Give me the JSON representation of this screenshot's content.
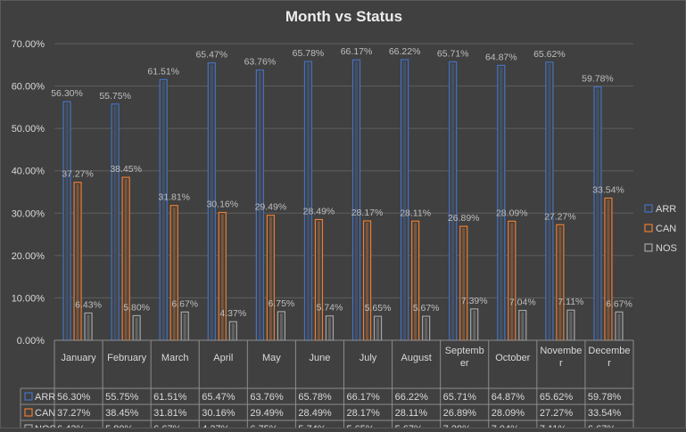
{
  "chart_data": {
    "type": "bar",
    "title": "Month vs Status",
    "xlabel": "",
    "ylabel": "",
    "ylim": [
      0,
      70
    ],
    "y_ticks": [
      "0.00%",
      "10.00%",
      "20.00%",
      "30.00%",
      "40.00%",
      "50.00%",
      "60.00%",
      "70.00%"
    ],
    "grid": true,
    "legend_position": "right",
    "categories": [
      "January",
      "February",
      "March",
      "April",
      "May",
      "June",
      "July",
      "August",
      "September",
      "October",
      "November",
      "December"
    ],
    "category_labels": [
      [
        "January"
      ],
      [
        "February"
      ],
      [
        "March"
      ],
      [
        "April"
      ],
      [
        "May"
      ],
      [
        "June"
      ],
      [
        "July"
      ],
      [
        "August"
      ],
      [
        "Septemb",
        "er"
      ],
      [
        "October"
      ],
      [
        "Novembe",
        "r"
      ],
      [
        "Decembe",
        "r"
      ]
    ],
    "series": [
      {
        "name": "ARR",
        "color": "#4472c4",
        "values": [
          56.3,
          55.75,
          61.51,
          65.47,
          63.76,
          65.78,
          66.17,
          66.22,
          65.71,
          64.87,
          65.62,
          59.78
        ],
        "labels": [
          "56.30%",
          "55.75%",
          "61.51%",
          "65.47%",
          "63.76%",
          "65.78%",
          "66.17%",
          "66.22%",
          "65.71%",
          "64.87%",
          "65.62%",
          "59.78%"
        ]
      },
      {
        "name": "CAN",
        "color": "#ed7d31",
        "values": [
          37.27,
          38.45,
          31.81,
          30.16,
          29.49,
          28.49,
          28.17,
          28.11,
          26.89,
          28.09,
          27.27,
          33.54
        ],
        "labels": [
          "37.27%",
          "38.45%",
          "31.81%",
          "30.16%",
          "29.49%",
          "28.49%",
          "28.17%",
          "28.11%",
          "26.89%",
          "28.09%",
          "27.27%",
          "33.54%"
        ]
      },
      {
        "name": "NOS",
        "color": "#a5a5a5",
        "values": [
          6.43,
          5.8,
          6.67,
          4.37,
          6.75,
          5.74,
          5.65,
          5.67,
          7.39,
          7.04,
          7.11,
          6.67
        ],
        "labels": [
          "6.43%",
          "5.80%",
          "6.67%",
          "4.37%",
          "6.75%",
          "5.74%",
          "5.65%",
          "5.67%",
          "7.39%",
          "7.04%",
          "7.11%",
          "6.67%"
        ]
      }
    ]
  }
}
